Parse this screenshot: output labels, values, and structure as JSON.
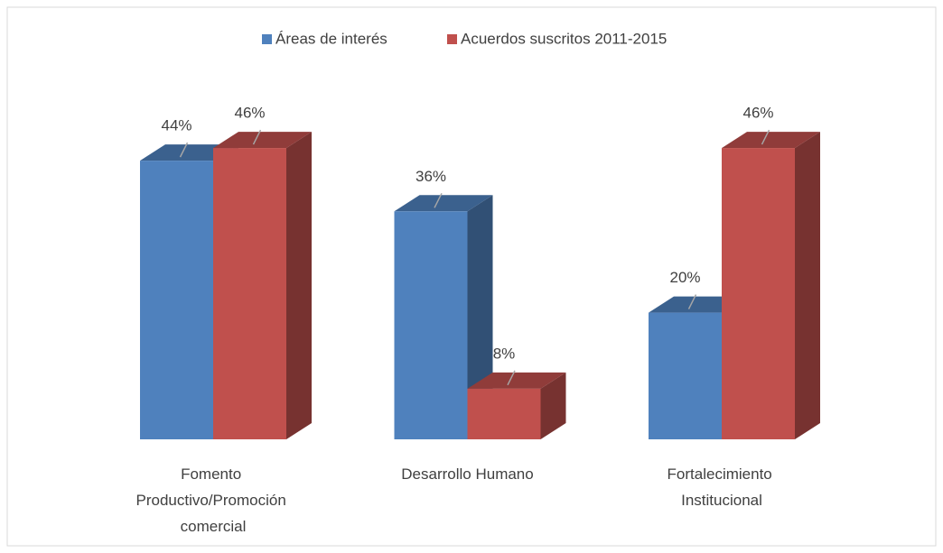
{
  "chart_data": {
    "type": "bar3d",
    "categories": [
      "Fomento Productivo/Promoción comercial",
      "Desarrollo Humano",
      "Fortalecimiento Institucional"
    ],
    "series": [
      {
        "name": "Áreas de interés",
        "color": "#4f81bd",
        "values": [
          44,
          36,
          20
        ],
        "value_labels": [
          "44%",
          "36%",
          "20%"
        ]
      },
      {
        "name": "Acuerdos suscritos 2011-2015",
        "color": "#c0504d",
        "values": [
          46,
          8,
          46
        ],
        "value_labels": [
          "46%",
          "8%",
          "46%"
        ]
      }
    ],
    "ylim": [
      0,
      50
    ],
    "legend": "top"
  }
}
